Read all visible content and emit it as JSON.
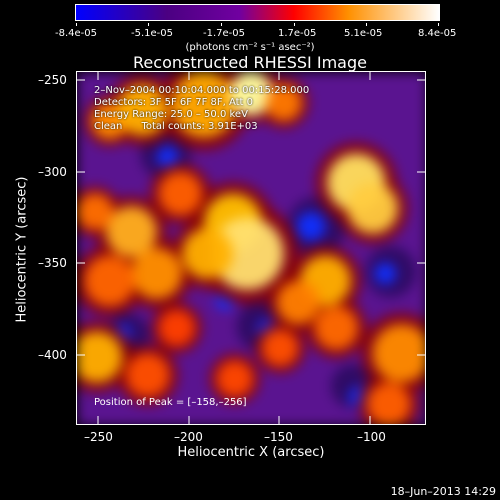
{
  "colorbar": {
    "labels": [
      "-8.4e-05",
      "-5.1e-05",
      "-1.7e-05",
      "1.7e-05",
      "5.1e-05",
      "8.4e-05"
    ],
    "units_text": "(photons cm⁻² s⁻¹ asec⁻²)"
  },
  "title": "Reconstructed RHESSI Image",
  "info": {
    "line1": "2–Nov–2004 00:10:04.000 to 00:15:28.000",
    "line2": "Detectors: 3F 5F 6F 7F 8F, Att 0",
    "line3": "Energy Range: 25.0 – 50.0 keV",
    "line4": "Clean      Total counts: 3.91E+03"
  },
  "peak_text": "Position of Peak = [–158,–256]",
  "x_axis": {
    "label": "Heliocentric X (arcsec)",
    "ticks": [
      "–250",
      "–200",
      "–150",
      "–100"
    ]
  },
  "y_axis": {
    "label": "Heliocentric Y (arcsec)",
    "ticks": [
      "–250",
      "–300",
      "–350",
      "–400"
    ]
  },
  "date_stamp": "18–Jun–2013 14:29",
  "image_blobs": [
    {
      "x": -244,
      "y": -272,
      "r": 10,
      "c": "#ff8c00"
    },
    {
      "x": -226,
      "y": -266,
      "r": 14,
      "c": "#ffb000"
    },
    {
      "x": -192,
      "y": -263,
      "r": 18,
      "c": "#ffaa00"
    },
    {
      "x": -166,
      "y": -257,
      "r": 12,
      "c": "#ffffa0"
    },
    {
      "x": -148,
      "y": -262,
      "r": 10,
      "c": "#ff7a00"
    },
    {
      "x": -205,
      "y": -312,
      "r": 12,
      "c": "#ff6000"
    },
    {
      "x": -176,
      "y": -328,
      "r": 16,
      "c": "#ffc000"
    },
    {
      "x": -168,
      "y": -345,
      "r": 20,
      "c": "#ffe070"
    },
    {
      "x": -190,
      "y": -345,
      "r": 14,
      "c": "#ffb000"
    },
    {
      "x": -232,
      "y": -333,
      "r": 14,
      "c": "#ffb020"
    },
    {
      "x": -252,
      "y": -322,
      "r": 10,
      "c": "#ff7000"
    },
    {
      "x": -218,
      "y": -356,
      "r": 14,
      "c": "#ff9000"
    },
    {
      "x": -244,
      "y": -360,
      "r": 14,
      "c": "#ff6600"
    },
    {
      "x": -108,
      "y": -306,
      "r": 16,
      "c": "#ffe060"
    },
    {
      "x": -99,
      "y": -320,
      "r": 14,
      "c": "#ffcc40"
    },
    {
      "x": -125,
      "y": -360,
      "r": 14,
      "c": "#ffb000"
    },
    {
      "x": -140,
      "y": -372,
      "r": 12,
      "c": "#ff8000"
    },
    {
      "x": -119,
      "y": -386,
      "r": 12,
      "c": "#ff6a00"
    },
    {
      "x": -83,
      "y": -400,
      "r": 16,
      "c": "#ff8c00"
    },
    {
      "x": -90,
      "y": -428,
      "r": 12,
      "c": "#ff6000"
    },
    {
      "x": -150,
      "y": -397,
      "r": 10,
      "c": "#ff5000"
    },
    {
      "x": -175,
      "y": -414,
      "r": 10,
      "c": "#ff4800"
    },
    {
      "x": -223,
      "y": -412,
      "r": 12,
      "c": "#ff5000"
    },
    {
      "x": -251,
      "y": -402,
      "r": 14,
      "c": "#ffb000"
    },
    {
      "x": -207,
      "y": -386,
      "r": 10,
      "c": "#ff4000"
    }
  ],
  "image_dark": [
    {
      "x": -213,
      "y": -290,
      "r": 14
    },
    {
      "x": -130,
      "y": -330,
      "r": 16
    },
    {
      "x": -160,
      "y": -385,
      "r": 14
    },
    {
      "x": -89,
      "y": -355,
      "r": 14
    },
    {
      "x": -234,
      "y": -390,
      "r": 12
    },
    {
      "x": -110,
      "y": -418,
      "r": 12
    }
  ],
  "image_blue": [
    {
      "x": -212,
      "y": -292,
      "r": 6
    },
    {
      "x": -133,
      "y": -330,
      "r": 8
    },
    {
      "x": -180,
      "y": -370,
      "r": 6
    },
    {
      "x": -156,
      "y": -388,
      "r": 7
    },
    {
      "x": -92,
      "y": -356,
      "r": 6
    },
    {
      "x": -106,
      "y": -424,
      "r": 6
    },
    {
      "x": -237,
      "y": -389,
      "r": 5
    }
  ]
}
